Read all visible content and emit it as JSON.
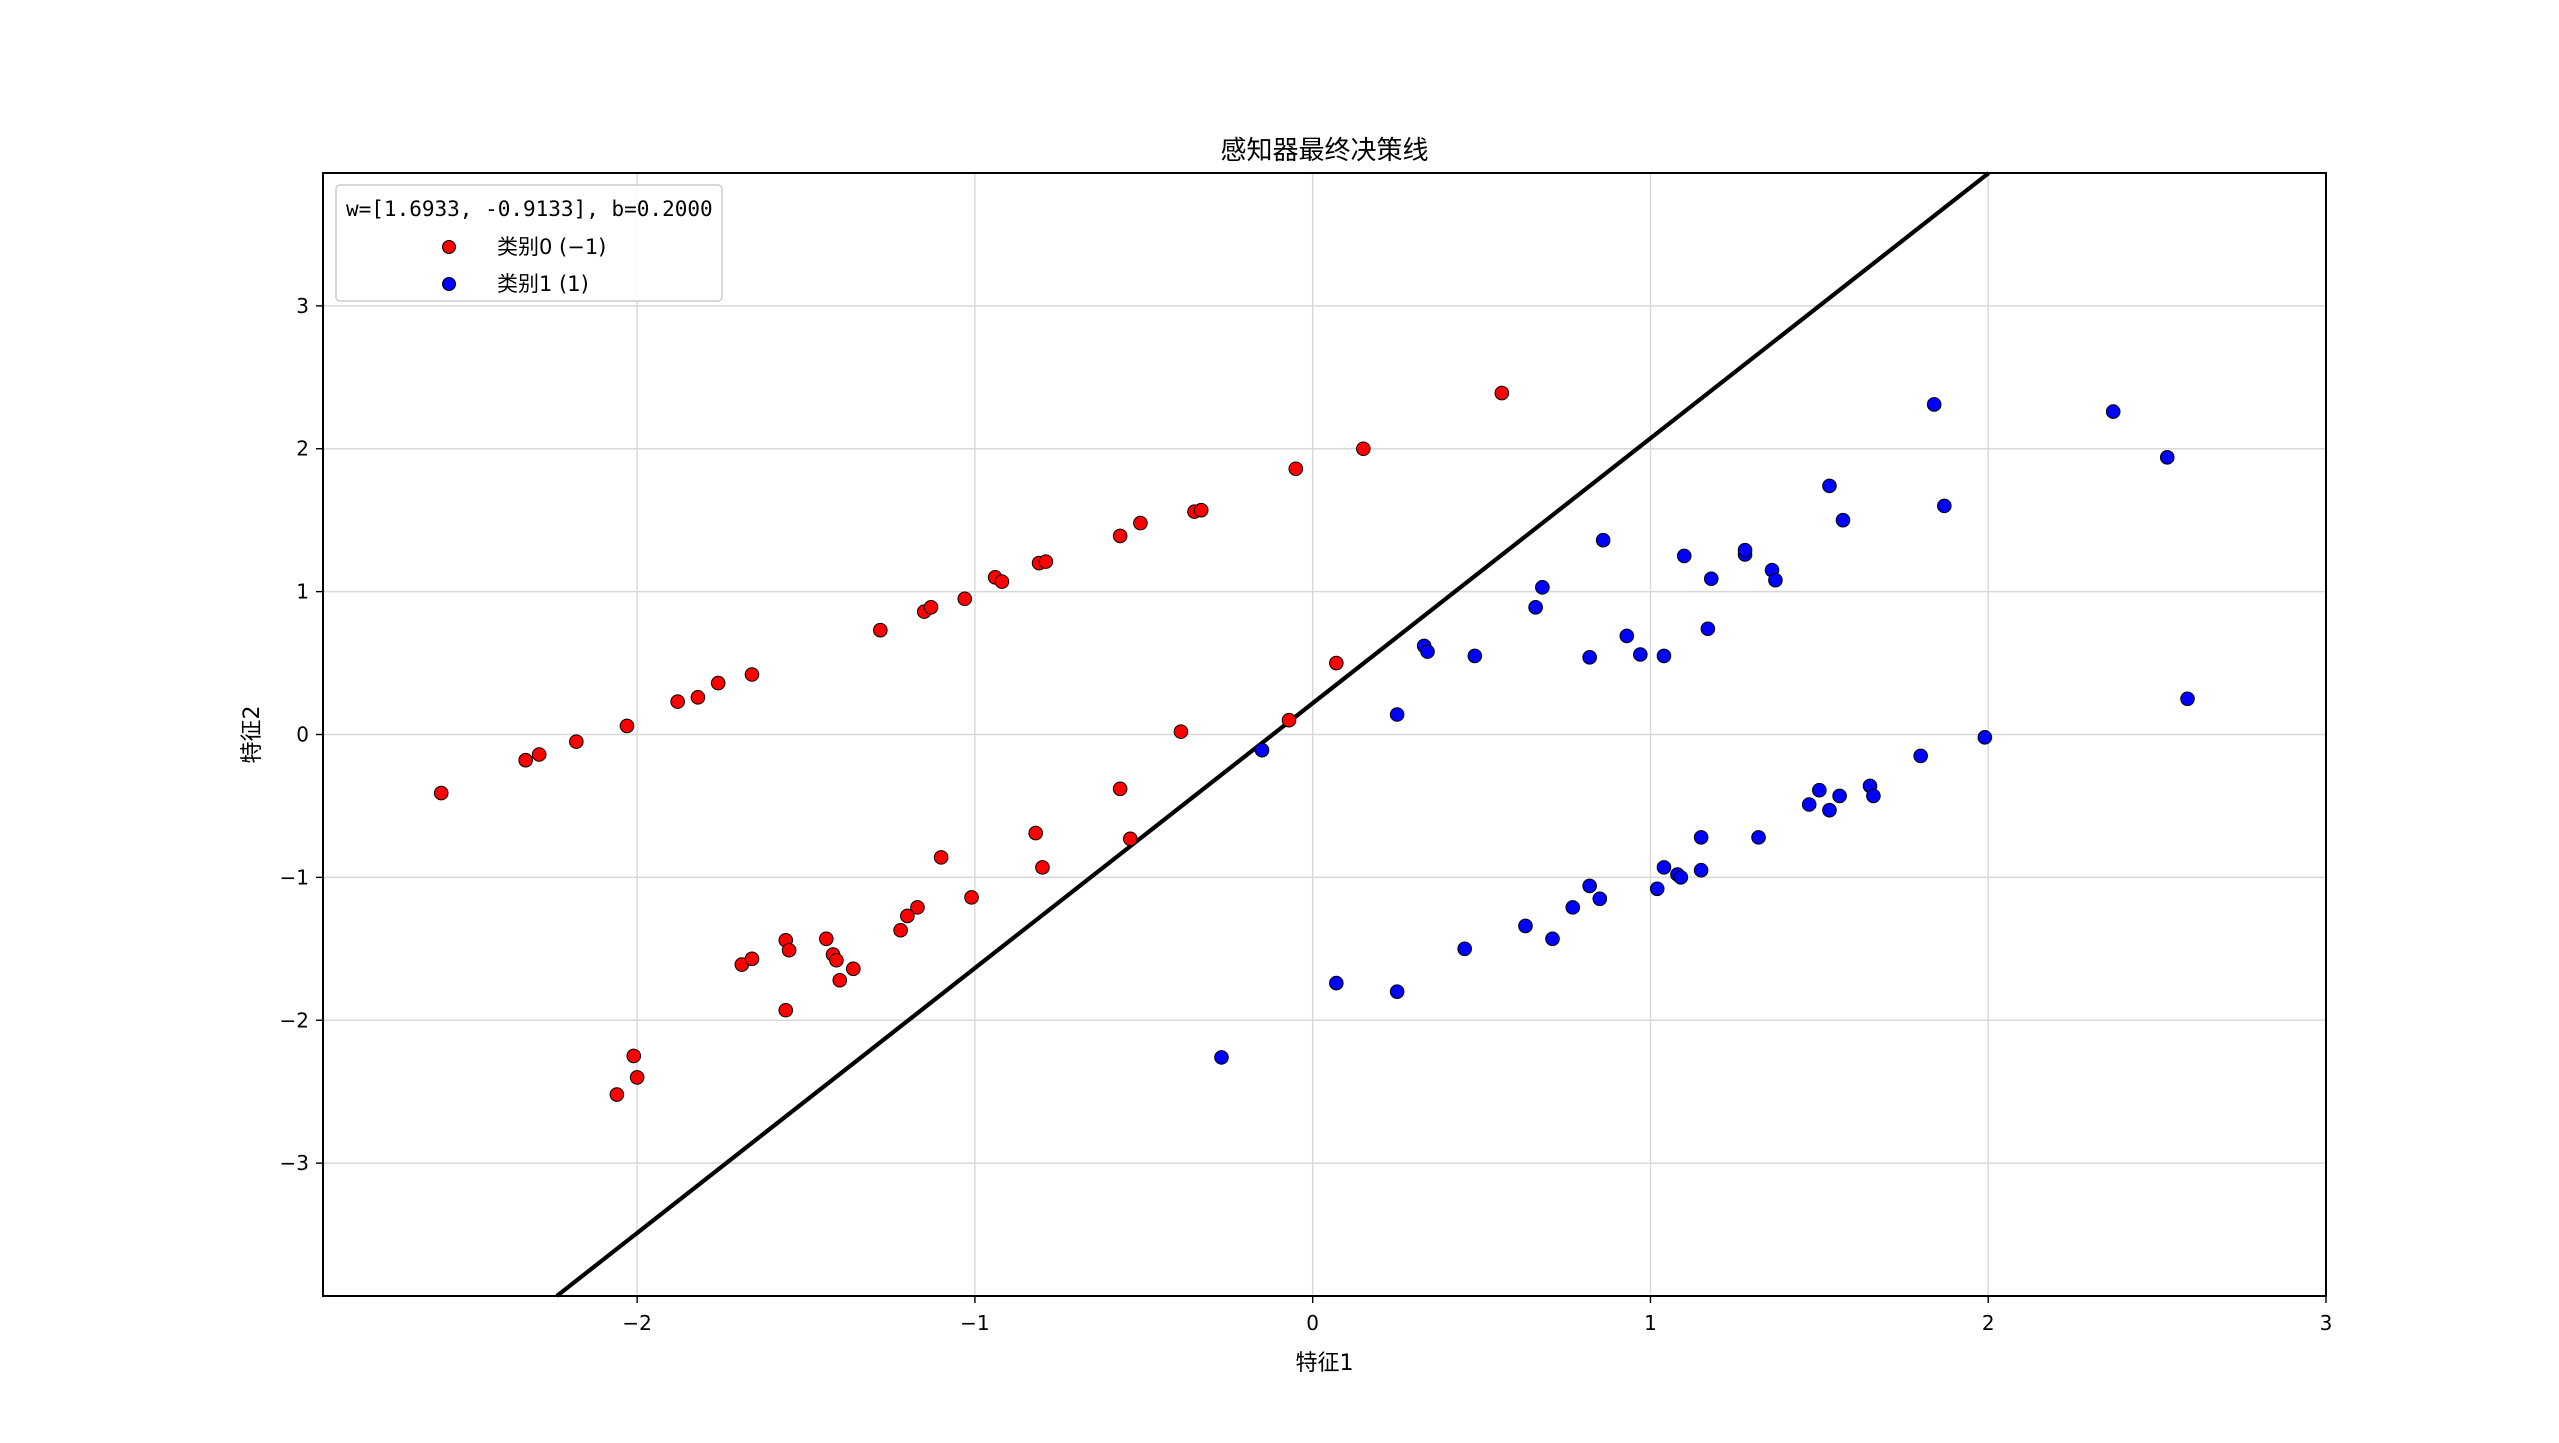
{
  "chart_data": {
    "type": "scatter",
    "title": "感知器最终决策线",
    "xlabel": "特征1",
    "ylabel": "特征2",
    "xlim": [
      -2.93,
      3.0
    ],
    "ylim": [
      -3.93,
      3.93
    ],
    "xticks": [
      -2,
      -1,
      0,
      1,
      2,
      3
    ],
    "xtick_labels": [
      "−2",
      "−1",
      "0",
      "1",
      "2",
      "3"
    ],
    "yticks": [
      -3,
      -2,
      -1,
      0,
      1,
      2,
      3
    ],
    "ytick_labels": [
      "−3",
      "−2",
      "−1",
      "0",
      "1",
      "2",
      "3"
    ],
    "grid": true,
    "legend": {
      "placement": "upper-left",
      "title": "w=[1.6933, -0.9133], b=0.2000"
    },
    "decision_line": {
      "w": [
        1.6933,
        -0.9133
      ],
      "b": 0.2,
      "color": "#000000"
    },
    "series": [
      {
        "name": "类别0 (−1)",
        "color": "#ff0000",
        "points": [
          [
            -2.58,
            -0.41
          ],
          [
            -2.33,
            -0.18
          ],
          [
            -2.29,
            -0.14
          ],
          [
            -2.18,
            -0.05
          ],
          [
            -2.03,
            0.06
          ],
          [
            -1.88,
            0.23
          ],
          [
            -1.82,
            0.26
          ],
          [
            -1.76,
            0.36
          ],
          [
            -1.66,
            0.42
          ],
          [
            -1.28,
            0.73
          ],
          [
            -1.15,
            0.86
          ],
          [
            -1.13,
            0.89
          ],
          [
            -1.03,
            0.95
          ],
          [
            -0.94,
            1.1
          ],
          [
            -0.92,
            1.07
          ],
          [
            -0.81,
            1.2
          ],
          [
            -0.79,
            1.21
          ],
          [
            -0.57,
            1.39
          ],
          [
            -0.51,
            1.48
          ],
          [
            -0.35,
            1.56
          ],
          [
            -0.33,
            1.57
          ],
          [
            -0.05,
            1.86
          ],
          [
            0.15,
            2.0
          ],
          [
            0.56,
            2.39
          ],
          [
            0.07,
            0.5
          ],
          [
            -0.07,
            0.1
          ],
          [
            -0.39,
            0.02
          ],
          [
            -0.57,
            -0.38
          ],
          [
            -0.54,
            -0.73
          ],
          [
            -0.82,
            -0.69
          ],
          [
            -0.8,
            -0.93
          ],
          [
            -1.1,
            -0.86
          ],
          [
            -1.01,
            -1.14
          ],
          [
            -1.17,
            -1.21
          ],
          [
            -1.2,
            -1.27
          ],
          [
            -1.22,
            -1.37
          ],
          [
            -1.56,
            -1.44
          ],
          [
            -1.55,
            -1.51
          ],
          [
            -1.44,
            -1.43
          ],
          [
            -1.42,
            -1.54
          ],
          [
            -1.41,
            -1.58
          ],
          [
            -1.4,
            -1.72
          ],
          [
            -1.36,
            -1.64
          ],
          [
            -1.69,
            -1.61
          ],
          [
            -1.66,
            -1.57
          ],
          [
            -1.56,
            -1.93
          ],
          [
            -2.01,
            -2.25
          ],
          [
            -2.0,
            -2.4
          ],
          [
            -2.06,
            -2.52
          ]
        ]
      },
      {
        "name": "类别1 (1)",
        "color": "#0000ff",
        "points": [
          [
            -0.15,
            -0.11
          ],
          [
            -0.27,
            -2.26
          ],
          [
            0.07,
            -1.74
          ],
          [
            0.25,
            -1.8
          ],
          [
            0.45,
            -1.5
          ],
          [
            0.63,
            -1.34
          ],
          [
            0.71,
            -1.43
          ],
          [
            0.77,
            -1.21
          ],
          [
            0.82,
            -1.06
          ],
          [
            0.85,
            -1.15
          ],
          [
            1.02,
            -1.08
          ],
          [
            1.04,
            -0.93
          ],
          [
            1.08,
            -0.98
          ],
          [
            1.09,
            -1.0
          ],
          [
            1.15,
            -0.95
          ],
          [
            1.15,
            -0.72
          ],
          [
            1.32,
            -0.72
          ],
          [
            1.47,
            -0.49
          ],
          [
            1.5,
            -0.39
          ],
          [
            1.53,
            -0.53
          ],
          [
            1.56,
            -0.43
          ],
          [
            1.65,
            -0.36
          ],
          [
            1.66,
            -0.43
          ],
          [
            1.8,
            -0.15
          ],
          [
            1.99,
            -0.02
          ],
          [
            2.59,
            0.25
          ],
          [
            0.25,
            0.14
          ],
          [
            0.33,
            0.62
          ],
          [
            0.34,
            0.58
          ],
          [
            0.48,
            0.55
          ],
          [
            0.66,
            0.89
          ],
          [
            0.68,
            1.03
          ],
          [
            0.82,
            0.54
          ],
          [
            0.86,
            1.36
          ],
          [
            0.93,
            0.69
          ],
          [
            0.97,
            0.56
          ],
          [
            1.04,
            0.55
          ],
          [
            1.1,
            1.25
          ],
          [
            1.17,
            0.74
          ],
          [
            1.18,
            1.09
          ],
          [
            1.28,
            1.26
          ],
          [
            1.28,
            1.29
          ],
          [
            1.36,
            1.15
          ],
          [
            1.37,
            1.08
          ],
          [
            1.53,
            1.74
          ],
          [
            1.57,
            1.5
          ],
          [
            1.84,
            2.31
          ],
          [
            1.87,
            1.6
          ],
          [
            2.37,
            2.26
          ],
          [
            2.53,
            1.94
          ]
        ]
      }
    ]
  }
}
